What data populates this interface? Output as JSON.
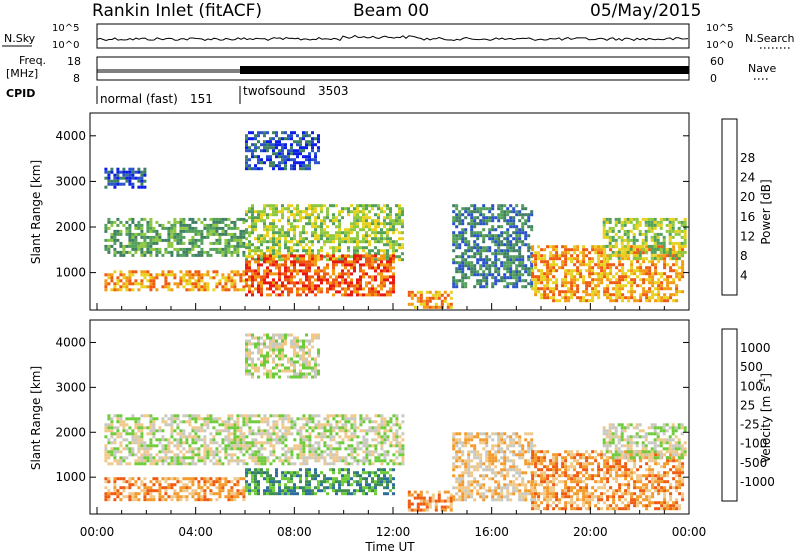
{
  "header": {
    "station": "Rankin Inlet (fitACF)",
    "beam": "Beam 00",
    "date": "05/May/2015"
  },
  "info_panels": {
    "nsky_label": "N.Sky",
    "nsearch_label": "N.Search",
    "nsky_scale": [
      "10^5",
      "10^0"
    ],
    "nsearch_scale": [
      "10^5",
      "10^0"
    ],
    "freq_label_1": "Freq.",
    "freq_label_2": "[MHz]",
    "freq_scale": [
      "18",
      "8"
    ],
    "nave_label": "Nave",
    "nave_scale": [
      "60",
      "0"
    ],
    "cpid_label": "CPID",
    "cpid_modes": [
      {
        "name": "normal (fast)",
        "id": "151",
        "start_hour": 0,
        "end_hour": 6.0
      },
      {
        "name": "twofsound",
        "id": "3503",
        "start_hour": 6.0,
        "end_hour": 24
      }
    ]
  },
  "chart_data": [
    {
      "type": "heatmap",
      "parameter": "Power",
      "ylabel": "Slant Range [km]",
      "xlabel": "Time UT",
      "x_range_hours": [
        0,
        24
      ],
      "x_ticks": [
        "00:00",
        "04:00",
        "08:00",
        "12:00",
        "16:00",
        "20:00",
        "00:00"
      ],
      "ylim_km": [
        180,
        4500
      ],
      "y_ticks": [
        "1000",
        "2000",
        "3000",
        "4000"
      ],
      "colorbar": {
        "label": "Power [dB]",
        "ticks": [
          "4",
          "8",
          "12",
          "16",
          "20",
          "24",
          "28"
        ],
        "colors": [
          "#0b1de8",
          "#2a52c9",
          "#3f7f62",
          "#52a05a",
          "#8ec83f",
          "#e8d21e",
          "#f39a12",
          "#ef5a10",
          "#e8170f"
        ]
      }
    },
    {
      "type": "heatmap",
      "parameter": "Velocity",
      "ylabel": "Slant Range [km]",
      "xlabel": "Time UT",
      "x_range_hours": [
        0,
        24
      ],
      "x_ticks": [
        "00:00",
        "04:00",
        "08:00",
        "12:00",
        "16:00",
        "20:00",
        "00:00"
      ],
      "ylim_km": [
        180,
        4500
      ],
      "y_ticks": [
        "1000",
        "2000",
        "3000",
        "4000"
      ],
      "colorbar": {
        "label": "Velocity [m s",
        "label_sup": "-1",
        "label_end": "]",
        "ticks": [
          "1000",
          "500",
          "100",
          "25",
          "-25",
          "-100",
          "-500",
          "-1000"
        ],
        "colors": [
          "#1a2fb8",
          "#2e6f9a",
          "#3e8e4f",
          "#6ecb3a",
          "#c9c9c0",
          "#f0c98a",
          "#f39a2a",
          "#ef5a10",
          "#e3140f"
        ]
      }
    }
  ],
  "echo_regions": {
    "power": [
      {
        "x": [
          0.3,
          6.0
        ],
        "y": [
          1400,
          2200
        ],
        "level": 3
      },
      {
        "x": [
          0.3,
          6.0
        ],
        "y": [
          600,
          1050
        ],
        "level": 6
      },
      {
        "x": [
          6.0,
          12.4
        ],
        "y": [
          1300,
          2500
        ],
        "level": 4
      },
      {
        "x": [
          6.0,
          12.0
        ],
        "y": [
          500,
          1400
        ],
        "level": 7
      },
      {
        "x": [
          12.6,
          14.4
        ],
        "y": [
          250,
          600
        ],
        "level": 6
      },
      {
        "x": [
          14.4,
          17.6
        ],
        "y": [
          700,
          2500
        ],
        "level": 2
      },
      {
        "x": [
          17.6,
          23.8
        ],
        "y": [
          400,
          1600
        ],
        "level": 6
      },
      {
        "x": [
          20.5,
          23.8
        ],
        "y": [
          1300,
          2200
        ],
        "level": 4
      },
      {
        "x": [
          6.0,
          9.0
        ],
        "y": [
          3300,
          4100
        ],
        "level": 1
      },
      {
        "x": [
          0.3,
          2.0
        ],
        "y": [
          2900,
          3300
        ],
        "level": 1
      }
    ],
    "velocity": [
      {
        "x": [
          0.3,
          12.4
        ],
        "y": [
          1300,
          2400
        ],
        "level": 4
      },
      {
        "x": [
          0.3,
          6.0
        ],
        "y": [
          500,
          1000
        ],
        "level": 6
      },
      {
        "x": [
          6.0,
          12.0
        ],
        "y": [
          600,
          1200
        ],
        "level": 2
      },
      {
        "x": [
          12.6,
          14.4
        ],
        "y": [
          250,
          700
        ],
        "level": 6
      },
      {
        "x": [
          14.4,
          17.8
        ],
        "y": [
          500,
          2000
        ],
        "level": 5
      },
      {
        "x": [
          17.6,
          23.8
        ],
        "y": [
          300,
          1600
        ],
        "level": 6
      },
      {
        "x": [
          20.5,
          23.8
        ],
        "y": [
          1400,
          2200
        ],
        "level": 4
      },
      {
        "x": [
          6.0,
          9.0
        ],
        "y": [
          3200,
          4200
        ],
        "level": 4
      }
    ]
  }
}
